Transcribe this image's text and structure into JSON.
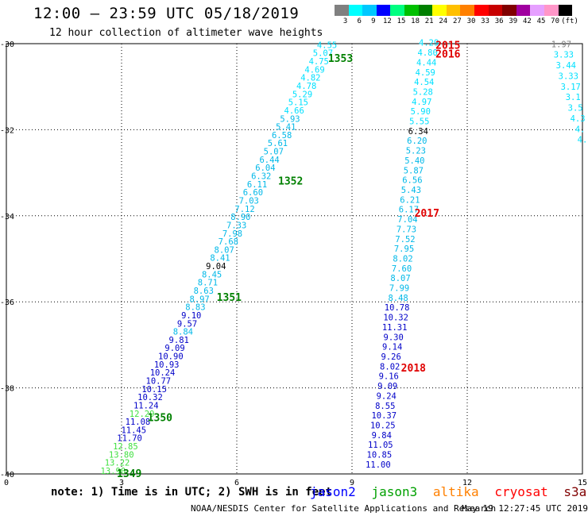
{
  "header": {
    "title": "12:00 – 23:59 UTC 05/18/2019",
    "subtitle": "12 hour collection of altimeter wave heights"
  },
  "scale": {
    "labels": [
      "3",
      "6",
      "9",
      "12",
      "15",
      "18",
      "21",
      "24",
      "27",
      "30",
      "33",
      "36",
      "39",
      "42",
      "45",
      "70",
      "(ft)"
    ],
    "colors": [
      "#808080",
      "#00ffff",
      "#00c8ff",
      "#0000ff",
      "#00ff80",
      "#00c000",
      "#008000",
      "#ffff00",
      "#ffc000",
      "#ff8000",
      "#ff0000",
      "#c80000",
      "#800000",
      "#a000a0",
      "#e6a0ff",
      "#ff96c8",
      "#000000"
    ]
  },
  "footer": {
    "note": "note:  1) Time is in UTC;  2) SWH is in feet",
    "legend": [
      {
        "label": "jason2",
        "color": "#0000ff"
      },
      {
        "label": "jason3",
        "color": "#00a000"
      },
      {
        "label": "altika",
        "color": "#ff8000"
      },
      {
        "label": "cryosat",
        "color": "#ff0000"
      },
      {
        "label": "s3a",
        "color": "#800000"
      }
    ],
    "credit": "NOAA/NESDIS Center for Satellite Applications and Research",
    "timestamp": "May 19 12:27:45 UTC 2019"
  },
  "chart_data": {
    "type": "scatter",
    "x_ticks": [
      "0",
      "3",
      "6",
      "9",
      "12",
      "15"
    ],
    "y_ticks": [
      "-30",
      "-32",
      "-34",
      "-36",
      "-38",
      "-40"
    ],
    "xlim": [
      0,
      15
    ],
    "ylim": [
      -40,
      -30
    ],
    "grid": true,
    "colors": {
      "c_light": "#00e0ff",
      "c_mid": "#00b8e8",
      "c_dark": "#0000c8",
      "c_green": "#40e040",
      "c_black": "#000000",
      "c_grey": "#808080"
    },
    "tracks": [
      {
        "name": "1349",
        "label_color": "#008000",
        "x": 3.2,
        "y": -40
      },
      {
        "name": "1350",
        "label_color": "#008000",
        "x": 4.0,
        "y": -38.7
      },
      {
        "name": "1351",
        "label_color": "#008000",
        "x": 5.8,
        "y": -35.9
      },
      {
        "name": "1352",
        "label_color": "#008000",
        "x": 7.4,
        "y": -33.2
      },
      {
        "name": "1353",
        "label_color": "#008000",
        "x": 8.7,
        "y": -30.35
      },
      {
        "name": "2015",
        "label_color": "#e00000",
        "x": 11.5,
        "y": -30.05
      },
      {
        "name": "2016",
        "label_color": "#e00000",
        "x": 11.5,
        "y": -30.25
      },
      {
        "name": "2017",
        "label_color": "#e00000",
        "x": 10.95,
        "y": -33.95
      },
      {
        "name": "2018",
        "label_color": "#e00000",
        "x": 10.6,
        "y": -37.55
      }
    ],
    "series": [
      {
        "name": "jason3",
        "x_start": 2.78,
        "y_start": -40,
        "x_end": 8.35,
        "y_end": -30.1,
        "values": [
          "13.90",
          "13.22",
          "13.80",
          "12.85",
          "11.70",
          "11.45",
          "11.08",
          "12.29",
          "11.24",
          "10.32",
          "10.15",
          "10.77",
          "10.24",
          "10.93",
          "10.90",
          "9.09",
          "9.81",
          "8.84",
          "9.57",
          "9.10",
          "8.83",
          "8.97",
          "8.63",
          "8.71",
          "8.45",
          "9.04",
          "8.41",
          "8.07",
          "7.68",
          "7.98",
          "7.33",
          "8.90",
          "7.12",
          "7.03",
          "6.60",
          "6.11",
          "6.32",
          "6.04",
          "6.44",
          "5.07",
          "5.61",
          "6.58",
          "5.41",
          "5.93",
          "4.66",
          "5.15",
          "5.29",
          "4.78",
          "4.82",
          "4.69",
          "4.75",
          "5.07",
          "4.55"
        ],
        "colors": [
          "c_green",
          "c_green",
          "c_green",
          "c_green",
          "c_dark",
          "c_dark",
          "c_dark",
          "c_green",
          "c_dark",
          "c_dark",
          "c_dark",
          "c_dark",
          "c_dark",
          "c_dark",
          "c_dark",
          "c_dark",
          "c_dark",
          "c_mid",
          "c_dark",
          "c_dark",
          "c_mid",
          "c_mid",
          "c_mid",
          "c_mid",
          "c_mid",
          "c_black",
          "c_mid",
          "c_mid",
          "c_mid",
          "c_mid",
          "c_mid",
          "c_mid",
          "c_mid",
          "c_mid",
          "c_mid",
          "c_mid",
          "c_mid",
          "c_mid",
          "c_mid",
          "c_mid",
          "c_mid",
          "c_mid",
          "c_mid",
          "c_mid",
          "c_light",
          "c_light",
          "c_light",
          "c_light",
          "c_light",
          "c_light",
          "c_light",
          "c_light",
          "c_light"
        ]
      },
      {
        "name": "cryosat",
        "x_start": 9.68,
        "y_start": -39.85,
        "x_end": 11.0,
        "y_end": -30.05,
        "values": [
          "11.00",
          "10.85",
          "11.05",
          "9.84",
          "10.25",
          "10.37",
          "8.55",
          "9.24",
          "9.09",
          "9.16",
          "8.02",
          "9.26",
          "9.14",
          "9.30",
          "11.31",
          "10.32",
          "10.78",
          "8.48",
          "7.99",
          "8.07",
          "7.60",
          "8.02",
          "7.95",
          "7.52",
          "7.73",
          "7.04",
          "6.17",
          "6.21",
          "5.43",
          "6.56",
          "5.87",
          "5.40",
          "5.23",
          "6.20",
          "6.34",
          "5.55",
          "5.90",
          "4.97",
          "5.28",
          "4.54",
          "4.59",
          "4.44",
          "4.80",
          "4.29"
        ],
        "colors": [
          "c_dark",
          "c_dark",
          "c_dark",
          "c_dark",
          "c_dark",
          "c_dark",
          "c_dark",
          "c_dark",
          "c_dark",
          "c_dark",
          "c_dark",
          "c_dark",
          "c_dark",
          "c_dark",
          "c_dark",
          "c_dark",
          "c_dark",
          "c_mid",
          "c_mid",
          "c_mid",
          "c_mid",
          "c_mid",
          "c_mid",
          "c_mid",
          "c_mid",
          "c_mid",
          "c_mid",
          "c_mid",
          "c_mid",
          "c_mid",
          "c_mid",
          "c_mid",
          "c_mid",
          "c_mid",
          "c_black",
          "c_light",
          "c_light",
          "c_light",
          "c_light",
          "c_light",
          "c_light",
          "c_light",
          "c_light",
          "c_light"
        ]
      },
      {
        "name": "altika",
        "x_start": 14.45,
        "y_start": -30.08,
        "x_end": 15.0,
        "y_end": -32.3,
        "values": [
          "1.97",
          "3.33",
          "3.44",
          "3.33",
          "3.17",
          "3.1",
          "3.5",
          "4.3",
          "4.",
          "4."
        ],
        "colors": [
          "c_grey",
          "c_light",
          "c_light",
          "c_light",
          "c_light",
          "c_light",
          "c_light",
          "c_light",
          "c_light",
          "c_light"
        ]
      }
    ]
  }
}
